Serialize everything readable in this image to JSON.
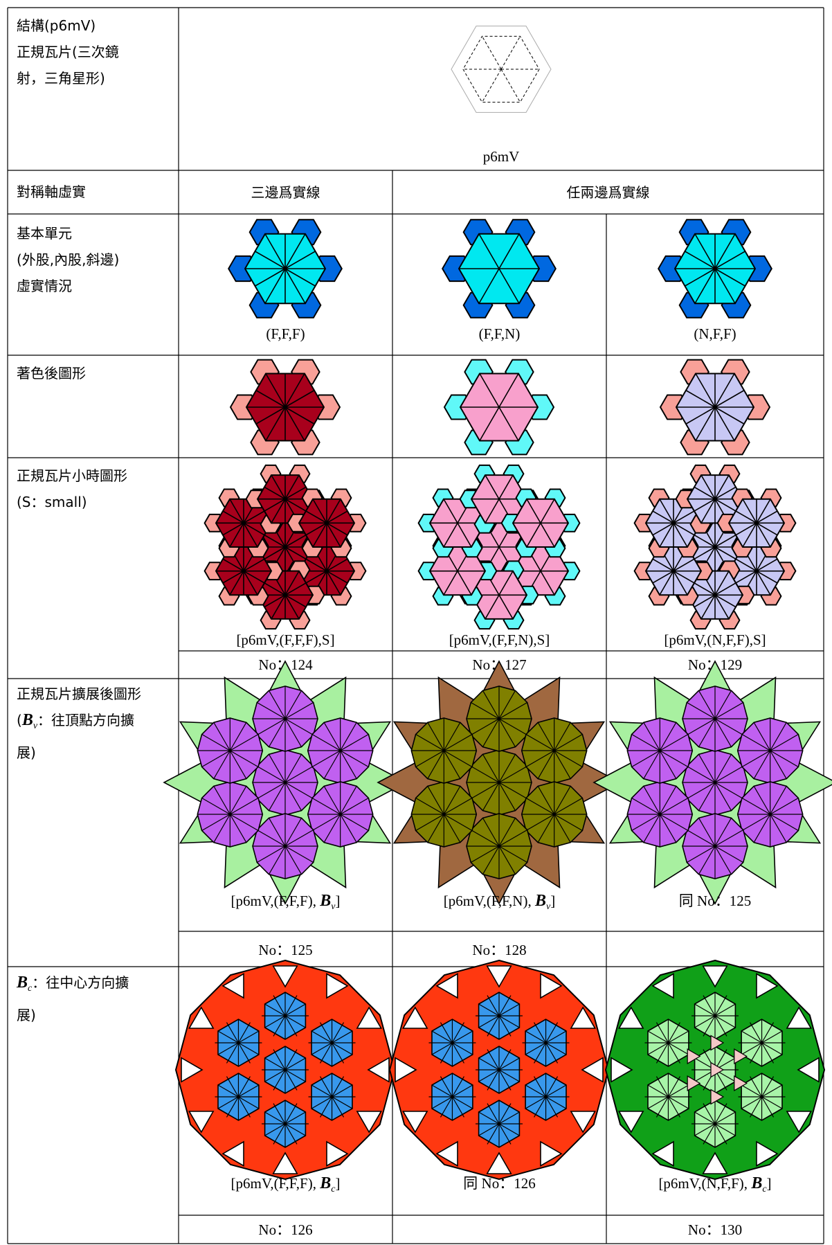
{
  "header": {
    "label": [
      "結構(p6mV)",
      "正規瓦片(三次鏡射，三角星形)"
    ],
    "caption": "p6mV"
  },
  "axis_row": {
    "label": "對稱軸虛實",
    "col1": "三邊爲實線",
    "col2_3": "任兩邊爲實線"
  },
  "rows": [
    {
      "label": [
        "基本單元",
        "(外股,內股,斜邊)",
        "虛實情況"
      ],
      "captions": [
        "(F,F,F)",
        "(F,F,N)",
        "(N,F,F)"
      ]
    },
    {
      "label": [
        "著色後圖形"
      ]
    },
    {
      "label": [
        "正規瓦片小時圖形",
        "(S：small)"
      ],
      "captions": [
        "[p6mV,(F,F,F),S]",
        "[p6mV,(F,F,N),S]",
        "[p6mV,(N,F,F),S]"
      ],
      "numbers": [
        "No：124",
        "No：127",
        "No：129"
      ]
    },
    {
      "label": [
        "正規瓦片擴展後圖形",
        {
          "pre": "(",
          "sym": "B",
          "sub": "v",
          "post": "：往頂點方向擴展)"
        }
      ],
      "captions": [
        {
          "pre": "[p6mV,(F,F,F), ",
          "sym": "B",
          "sub": "v",
          "post": "]"
        },
        {
          "pre": "[p6mV,(F,F,N), ",
          "sym": "B",
          "sub": "v",
          "post": "]"
        },
        "同 No：125"
      ],
      "numbers": [
        "No：125",
        "No：128",
        null
      ]
    },
    {
      "label": [
        {
          "sym": "B",
          "sub": "c",
          "post": "：往中心方向擴展)"
        }
      ],
      "captions": [
        {
          "pre": "[p6mV,(F,F,F), ",
          "sym": "B",
          "sub": "c",
          "post": "]"
        },
        "同 No：126",
        {
          "pre": "[p6mV,(N,F,F), ",
          "sym": "B",
          "sub": "c",
          "post": "]"
        }
      ],
      "numbers": [
        "No：126",
        null,
        "No：130"
      ]
    }
  ]
}
